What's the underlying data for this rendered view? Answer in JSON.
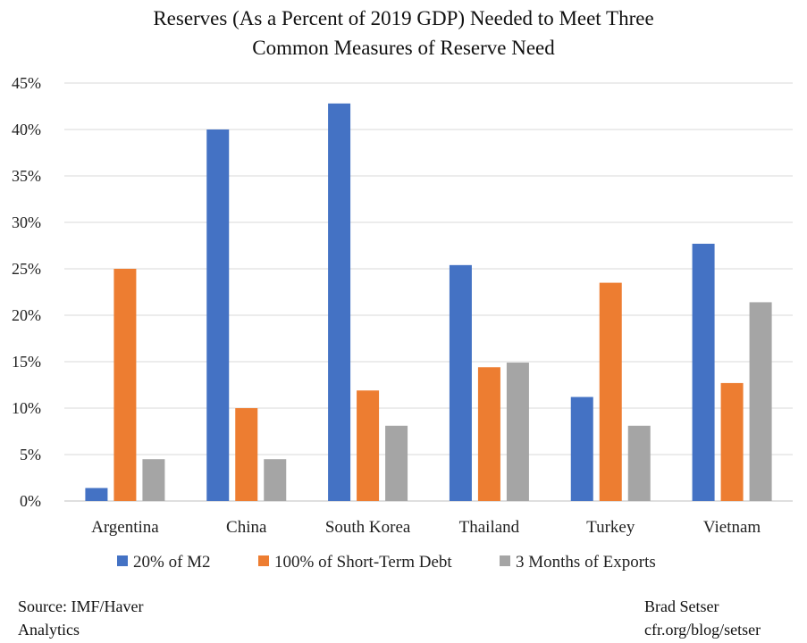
{
  "chart_data": {
    "type": "bar",
    "title_lines": [
      "Reserves (As a Percent of 2019 GDP) Needed to Meet Three",
      "Common Measures of Reserve Need"
    ],
    "categories": [
      "Argentina",
      "China",
      "South Korea",
      "Thailand",
      "Turkey",
      "Vietnam"
    ],
    "series": [
      {
        "name": "20% of M2",
        "color": "#4472C4",
        "values": [
          1.4,
          40.0,
          42.8,
          25.4,
          11.2,
          27.7
        ]
      },
      {
        "name": "100% of Short-Term Debt",
        "color": "#ED7D31",
        "values": [
          25.0,
          10.0,
          11.9,
          14.4,
          23.5,
          12.7
        ]
      },
      {
        "name": "3 Months of Exports",
        "color": "#A5A5A5",
        "values": [
          4.5,
          4.5,
          8.1,
          14.9,
          8.1,
          21.4
        ]
      }
    ],
    "y_ticks": [
      "0%",
      "5%",
      "10%",
      "15%",
      "20%",
      "25%",
      "30%",
      "35%",
      "40%",
      "45%"
    ],
    "ylim": [
      0,
      45
    ],
    "grid": true,
    "legend_position": "bottom"
  },
  "footer": {
    "source_line1": "Source: IMF/Haver",
    "source_line2": "Analytics",
    "credit_line1": "Brad Setser",
    "credit_line2": "cfr.org/blog/setser"
  }
}
